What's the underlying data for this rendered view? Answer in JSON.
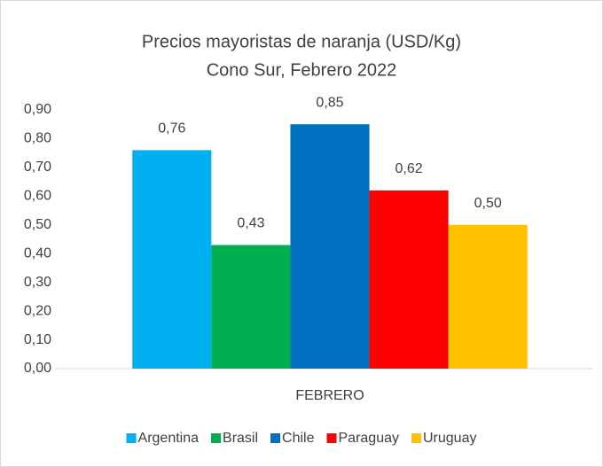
{
  "chart_data": {
    "type": "bar",
    "title": "Precios mayoristas de naranja (USD/Kg)",
    "subtitle": "Cono Sur, Febrero 2022",
    "categories": [
      "FEBRERO"
    ],
    "series": [
      {
        "name": "Argentina",
        "color": "#00b0f0",
        "values": [
          0.76
        ],
        "value_labels": [
          "0,76"
        ]
      },
      {
        "name": "Brasil",
        "color": "#00b050",
        "values": [
          0.43
        ],
        "value_labels": [
          "0,43"
        ]
      },
      {
        "name": "Chile",
        "color": "#0070c0",
        "values": [
          0.85
        ],
        "value_labels": [
          "0,85"
        ]
      },
      {
        "name": "Paraguay",
        "color": "#ff0000",
        "values": [
          0.62
        ],
        "value_labels": [
          "0,62"
        ]
      },
      {
        "name": "Uruguay",
        "color": "#ffc000",
        "values": [
          0.5
        ],
        "value_labels": [
          "0,50"
        ]
      }
    ],
    "ylim": [
      0,
      0.9
    ],
    "yticks": [
      {
        "value": 0,
        "label": "0,00"
      },
      {
        "value": 0.1,
        "label": "0,10"
      },
      {
        "value": 0.2,
        "label": "0,20"
      },
      {
        "value": 0.3,
        "label": "0,30"
      },
      {
        "value": 0.4,
        "label": "0,40"
      },
      {
        "value": 0.5,
        "label": "0,50"
      },
      {
        "value": 0.6,
        "label": "0,60"
      },
      {
        "value": 0.7,
        "label": "0,70"
      },
      {
        "value": 0.8,
        "label": "0,80"
      },
      {
        "value": 0.9,
        "label": "0,90"
      }
    ],
    "grid": false,
    "legend": "bottom"
  }
}
